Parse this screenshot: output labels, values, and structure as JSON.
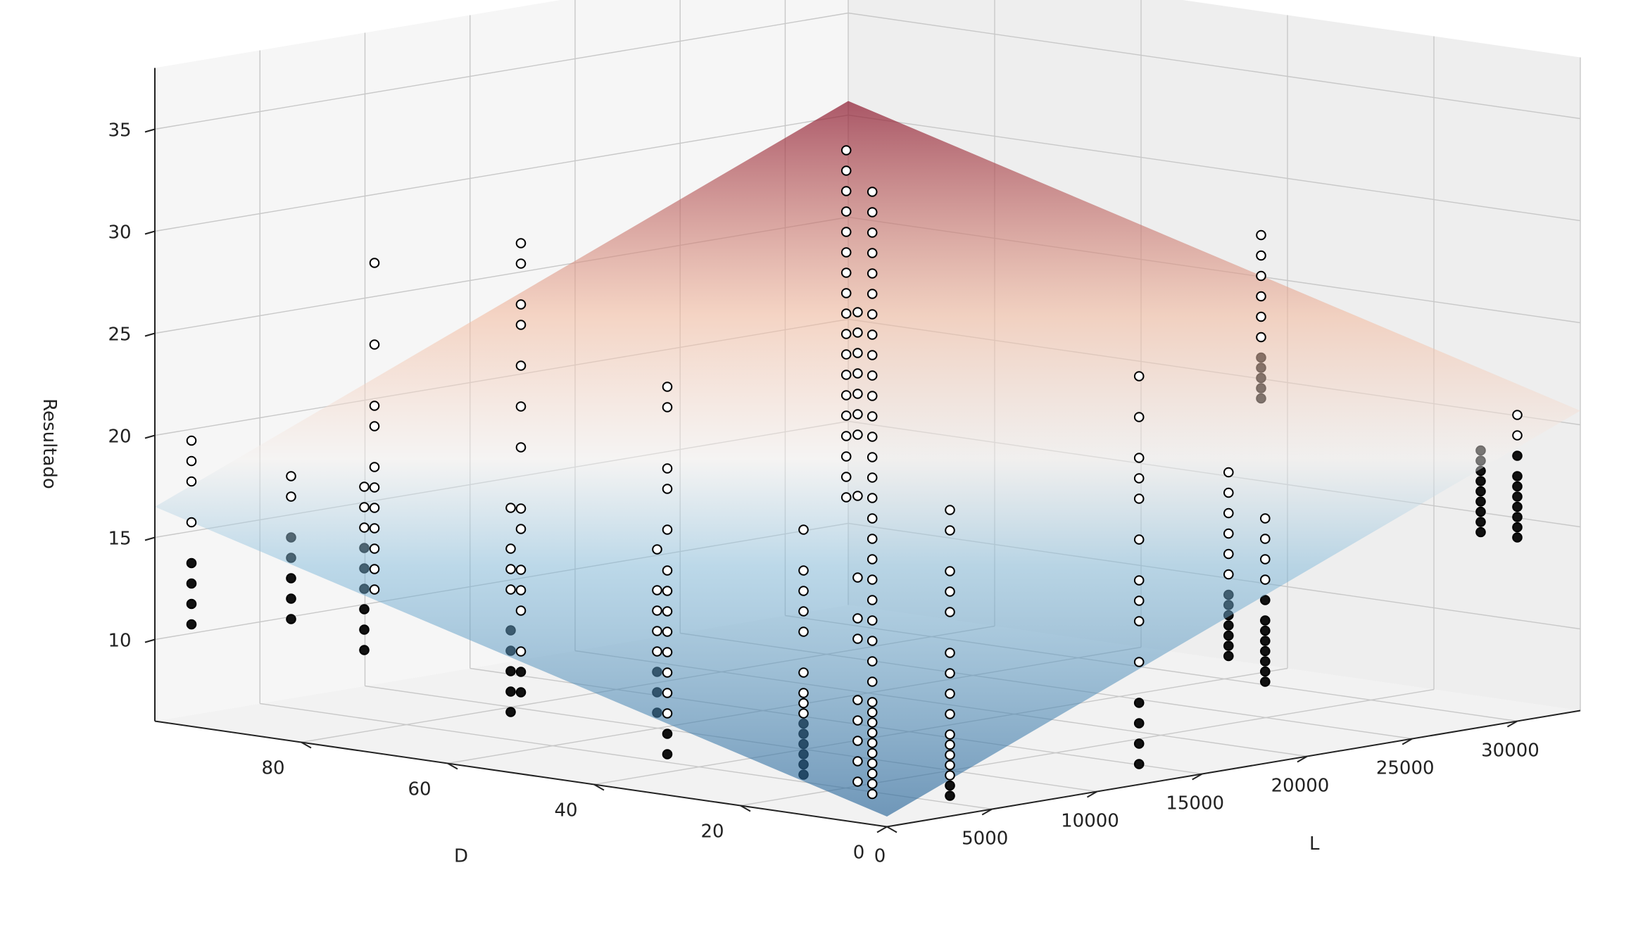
{
  "chart_data": {
    "type": "scatter",
    "projection": "3d",
    "title": "",
    "xlabel": "L",
    "ylabel": "D",
    "zlabel": "Resultado",
    "xlim": [
      0,
      33000
    ],
    "ylim": [
      0,
      100
    ],
    "zlim": [
      6,
      38
    ],
    "x_ticks": [
      0,
      5000,
      10000,
      15000,
      20000,
      25000,
      30000
    ],
    "y_ticks": [
      0,
      20,
      40,
      60,
      80
    ],
    "z_ticks": [
      10,
      15,
      20,
      25,
      30,
      35
    ],
    "grid": true,
    "surface": {
      "type": "plane",
      "colormap": "RdBu_r",
      "z_at_origin": 6.5,
      "slope_L_per_unit": 0.00043,
      "slope_D_per_unit": 0.1
    },
    "marker_style": "white fill with black edge above surface, dark below surface",
    "groups": [
      {
        "L": 0,
        "D": 2,
        "z": [
          7.5,
          8,
          8.5,
          9,
          9.5,
          10,
          10.5,
          11,
          11.5,
          12,
          13,
          14,
          15,
          16,
          17,
          18,
          19,
          20,
          21,
          22,
          23,
          24,
          25,
          26,
          27,
          28,
          29,
          30,
          31,
          32,
          33,
          34,
          35,
          36,
          37
        ]
      },
      {
        "L": 0,
        "D": 4,
        "z": [
          8,
          9,
          10,
          11,
          12,
          15,
          16,
          18,
          22,
          25,
          26,
          27,
          28,
          29,
          30,
          31
        ]
      },
      {
        "L": 0,
        "D": 30,
        "z": [
          8,
          9,
          10,
          11,
          12,
          13,
          14,
          15,
          16,
          17,
          19,
          21,
          22,
          25,
          26
        ]
      },
      {
        "L": 0,
        "D": 50,
        "z": [
          10,
          11,
          12,
          14,
          15,
          16,
          18,
          19,
          22,
          24,
          26,
          28,
          29,
          31,
          32
        ]
      },
      {
        "L": 0,
        "D": 70,
        "z": [
          14,
          15,
          16,
          17,
          18,
          19,
          20,
          22,
          23,
          26,
          30
        ]
      },
      {
        "L": 0,
        "D": 95,
        "z": [
          11,
          12,
          13,
          14,
          16,
          18,
          19,
          20
        ]
      },
      {
        "L": 3000,
        "D": 0,
        "z": [
          7,
          7.5,
          8,
          8.5,
          9,
          9.5,
          10,
          11,
          12,
          13,
          14,
          16,
          17,
          18,
          20,
          21
        ]
      },
      {
        "L": 3000,
        "D": 20,
        "z": [
          7,
          7.5,
          8,
          8.5,
          9,
          9.5,
          10,
          10.5,
          11,
          12,
          14,
          15,
          16,
          17,
          19
        ]
      },
      {
        "L": 3000,
        "D": 40,
        "z": [
          9,
          10,
          11,
          12,
          13,
          14,
          15,
          17
        ]
      },
      {
        "L": 3000,
        "D": 60,
        "z": [
          8,
          9,
          10,
          11,
          12,
          14,
          15,
          16,
          18
        ]
      },
      {
        "L": 3000,
        "D": 80,
        "z": [
          10,
          11,
          12,
          13,
          14,
          15,
          16,
          17,
          18
        ]
      },
      {
        "L": 3000,
        "D": 90,
        "z": [
          11,
          12,
          13,
          14,
          15,
          17,
          18
        ]
      },
      {
        "L": 12000,
        "D": 0,
        "z": [
          7,
          8,
          9,
          10,
          12,
          14,
          15,
          16,
          18,
          20,
          21,
          22,
          24,
          26
        ]
      },
      {
        "L": 12000,
        "D": 40,
        "z": [
          18,
          19,
          20,
          21,
          22,
          23,
          24,
          25,
          26,
          27,
          28,
          29,
          30,
          31,
          32,
          33,
          34,
          35
        ]
      },
      {
        "L": 18000,
        "D": 0,
        "z": [
          10,
          10.5,
          11,
          11.5,
          12,
          12.5,
          13,
          14,
          15,
          16,
          17,
          18
        ]
      },
      {
        "L": 18000,
        "D": 5,
        "z": [
          11,
          11.5,
          12,
          12.5,
          13,
          13.5,
          14,
          15,
          16,
          17,
          18,
          19,
          20
        ]
      },
      {
        "L": 30000,
        "D": 0,
        "z": [
          15,
          15.5,
          16,
          16.5,
          17,
          17.5,
          18,
          19,
          20,
          21
        ]
      },
      {
        "L": 30000,
        "D": 5,
        "z": [
          15,
          15.5,
          16,
          16.5,
          17,
          17.5,
          18,
          18.5,
          19
        ]
      },
      {
        "L": 30000,
        "D": 35,
        "z": [
          20,
          20.5,
          21,
          21.5,
          22,
          23,
          24,
          25,
          26,
          27,
          28
        ]
      }
    ]
  }
}
